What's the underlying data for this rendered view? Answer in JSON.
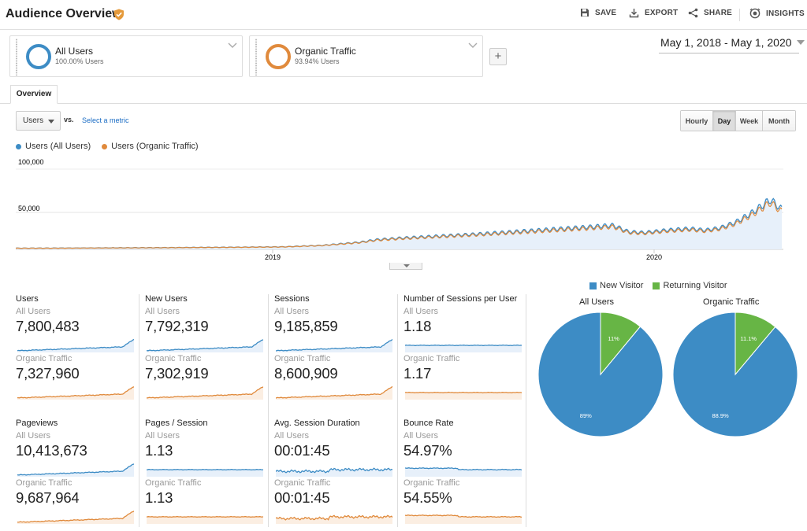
{
  "header": {
    "title": "Audience Overview",
    "actions": {
      "save": "SAVE",
      "export": "EXPORT",
      "share": "SHARE",
      "insights": "INSIGHTS"
    }
  },
  "segments": [
    {
      "name": "All Users",
      "subtitle": "100.00% Users",
      "color": "#3d8cc5"
    },
    {
      "name": "Organic Traffic",
      "subtitle": "93.94% Users",
      "color": "#e08a3c"
    }
  ],
  "add_segment_label": "+",
  "date_range": "May 1, 2018 - May 1, 2020",
  "tabs": {
    "overview": "Overview"
  },
  "controls": {
    "metric": "Users",
    "vs": "vs.",
    "select_metric": "Select a metric",
    "granularity": [
      "Hourly",
      "Day",
      "Week",
      "Month"
    ],
    "granularity_active": "Day"
  },
  "chart_data": {
    "type": "line",
    "series": [
      {
        "name": "Users (All Users)",
        "color": "#3d8cc5"
      },
      {
        "name": "Users (Organic Traffic)",
        "color": "#e08a3c"
      }
    ],
    "ylim": [
      0,
      100000
    ],
    "yticks": [
      "100,000",
      "50,000"
    ],
    "xticks": [
      "2019",
      "2020"
    ],
    "shape_t": [
      0,
      0.05,
      0.1,
      0.15,
      0.2,
      0.25,
      0.3,
      0.35,
      0.4,
      0.45,
      0.47,
      0.5,
      0.55,
      0.6,
      0.65,
      0.7,
      0.75,
      0.78,
      0.8,
      0.82,
      0.85,
      0.88,
      0.9,
      0.92,
      0.94,
      0.96,
      0.975,
      0.985,
      1.0
    ],
    "shape_v": [
      1500,
      1600,
      1800,
      2000,
      2200,
      2500,
      2800,
      3200,
      5000,
      9000,
      12000,
      14000,
      16500,
      19000,
      22000,
      25000,
      28000,
      30000,
      22000,
      21000,
      24000,
      26000,
      24000,
      27000,
      34000,
      45000,
      55000,
      62000,
      50000
    ]
  },
  "metrics": [
    {
      "title": "Users",
      "seg1": "All Users",
      "v1": "7,800,483",
      "seg2": "Organic Traffic",
      "v2": "7,327,960",
      "trend": "growth"
    },
    {
      "title": "New Users",
      "seg1": "All Users",
      "v1": "7,792,319",
      "seg2": "Organic Traffic",
      "v2": "7,302,919",
      "trend": "growth"
    },
    {
      "title": "Sessions",
      "seg1": "All Users",
      "v1": "9,185,859",
      "seg2": "Organic Traffic",
      "v2": "8,600,909",
      "trend": "growth"
    },
    {
      "title": "Number of Sessions per User",
      "seg1": "All Users",
      "v1": "1.18",
      "seg2": "Organic Traffic",
      "v2": "1.17",
      "trend": "flat"
    },
    {
      "title": "Pageviews",
      "seg1": "All Users",
      "v1": "10,413,673",
      "seg2": "Organic Traffic",
      "v2": "9,687,964",
      "trend": "growth"
    },
    {
      "title": "Pages / Session",
      "seg1": "All Users",
      "v1": "1.13",
      "seg2": "Organic Traffic",
      "v2": "1.13",
      "trend": "flat"
    },
    {
      "title": "Avg. Session Duration",
      "seg1": "All Users",
      "v1": "00:01:45",
      "seg2": "Organic Traffic",
      "v2": "00:01:45",
      "trend": "noisy"
    },
    {
      "title": "Bounce Rate",
      "seg1": "All Users",
      "v1": "54.97%",
      "seg2": "Organic Traffic",
      "v2": "54.55%",
      "trend": "step"
    }
  ],
  "pie_legend": [
    {
      "label": "New Visitor",
      "color": "#3d8cc5"
    },
    {
      "label": "Returning Visitor",
      "color": "#67b545"
    }
  ],
  "pies": [
    {
      "title": "All Users",
      "new_pct": 89,
      "returning_pct": 11,
      "new_label": "89%",
      "returning_label": "11%"
    },
    {
      "title": "Organic Traffic",
      "new_pct": 88.9,
      "returning_pct": 11.1,
      "new_label": "88.9%",
      "returning_label": "11.1%"
    }
  ]
}
